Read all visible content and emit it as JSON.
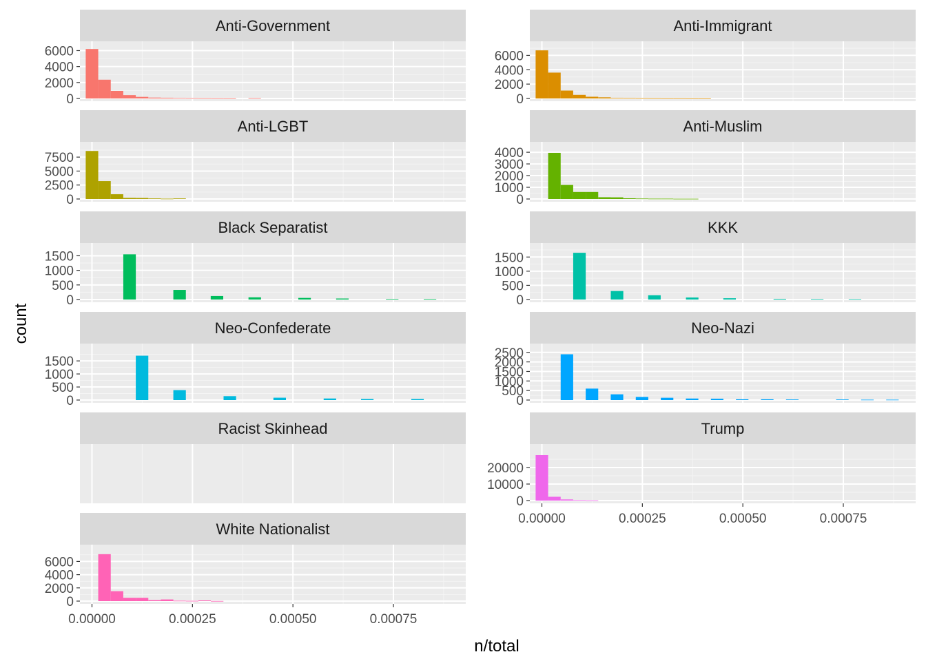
{
  "chart_data": {
    "type": "bar",
    "subtype": "faceted-histogram",
    "xlabel": "n/total",
    "ylabel": "count",
    "xlim": [
      -3e-05,
      0.00093
    ],
    "x_ticks": [
      0,
      0.00025,
      0.0005,
      0.00075
    ],
    "x_tick_labels": [
      "0.00000",
      "0.00025",
      "0.00050",
      "0.00075"
    ],
    "bin_width": 3.115e-05,
    "grid": true,
    "legend": "none",
    "facets": [
      {
        "name": "Anti-Government",
        "color": "#F8766D",
        "ylim": [
          0,
          6300
        ],
        "y_ticks": [
          0,
          2000,
          4000,
          6000
        ],
        "y_tick_labels": [
          "0",
          "2000",
          "4000",
          "6000"
        ],
        "bins": [
          {
            "x": 0.0,
            "count": 6200
          },
          {
            "x": 3.115e-05,
            "count": 2350
          },
          {
            "x": 6.23e-05,
            "count": 950
          },
          {
            "x": 9.345e-05,
            "count": 420
          },
          {
            "x": 0.0001246,
            "count": 200
          },
          {
            "x": 0.00015575,
            "count": 110
          },
          {
            "x": 0.0001869,
            "count": 90
          },
          {
            "x": 0.00021805,
            "count": 60
          },
          {
            "x": 0.0002492,
            "count": 40
          },
          {
            "x": 0.00028035,
            "count": 30
          },
          {
            "x": 0.0003115,
            "count": 20
          },
          {
            "x": 0.00034265,
            "count": 10
          },
          {
            "x": 0.0004049,
            "count": 40
          }
        ]
      },
      {
        "name": "Anti-Immigrant",
        "color": "#DB8E00",
        "ylim": [
          0,
          7000
        ],
        "y_ticks": [
          0,
          2000,
          4000,
          6000
        ],
        "y_tick_labels": [
          "0",
          "2000",
          "4000",
          "6000"
        ],
        "bins": [
          {
            "x": 0.0,
            "count": 6700
          },
          {
            "x": 3.115e-05,
            "count": 3600
          },
          {
            "x": 6.23e-05,
            "count": 1100
          },
          {
            "x": 9.345e-05,
            "count": 500
          },
          {
            "x": 0.0001246,
            "count": 240
          },
          {
            "x": 0.00015575,
            "count": 160
          },
          {
            "x": 0.0001869,
            "count": 80
          },
          {
            "x": 0.00021805,
            "count": 60
          },
          {
            "x": 0.0002492,
            "count": 40
          },
          {
            "x": 0.00028035,
            "count": 30
          },
          {
            "x": 0.0003115,
            "count": 20
          },
          {
            "x": 0.00034265,
            "count": 20
          },
          {
            "x": 0.0003738,
            "count": 10
          },
          {
            "x": 0.00040495,
            "count": 10
          }
        ]
      },
      {
        "name": "Anti-LGBT",
        "color": "#AEA200",
        "ylim": [
          0,
          9000
        ],
        "y_ticks": [
          0,
          2500,
          5000,
          7500
        ],
        "y_tick_labels": [
          "0",
          "2500",
          "5000",
          "7500"
        ],
        "bins": [
          {
            "x": 0.0,
            "count": 8600
          },
          {
            "x": 3.115e-05,
            "count": 3200
          },
          {
            "x": 6.23e-05,
            "count": 850
          },
          {
            "x": 9.345e-05,
            "count": 200
          },
          {
            "x": 0.0001246,
            "count": 180
          },
          {
            "x": 0.00015575,
            "count": 100
          },
          {
            "x": 0.0001869,
            "count": 60
          },
          {
            "x": 0.00021805,
            "count": 100
          }
        ]
      },
      {
        "name": "Anti-Muslim",
        "color": "#64B200",
        "ylim": [
          0,
          4300
        ],
        "y_ticks": [
          0,
          1000,
          2000,
          3000,
          4000
        ],
        "y_tick_labels": [
          "0",
          "1000",
          "2000",
          "3000",
          "4000"
        ],
        "bins": [
          {
            "x": 3.115e-05,
            "count": 3950
          },
          {
            "x": 6.23e-05,
            "count": 1200
          },
          {
            "x": 9.345e-05,
            "count": 600
          },
          {
            "x": 0.0001246,
            "count": 600
          },
          {
            "x": 0.00015575,
            "count": 150
          },
          {
            "x": 0.0001869,
            "count": 140
          },
          {
            "x": 0.00021805,
            "count": 60
          },
          {
            "x": 0.0002492,
            "count": 40
          },
          {
            "x": 0.00028035,
            "count": 30
          },
          {
            "x": 0.0003115,
            "count": 30
          },
          {
            "x": 0.00034265,
            "count": 20
          },
          {
            "x": 0.0003738,
            "count": 20
          }
        ]
      },
      {
        "name": "Black Separatist",
        "color": "#00BD5C",
        "ylim": [
          0,
          1700
        ],
        "y_ticks": [
          0,
          500,
          1000,
          1500
        ],
        "y_tick_labels": [
          "0",
          "500",
          "1000",
          "1500"
        ],
        "bins": [
          {
            "x": 9.35e-05,
            "count": 1550
          },
          {
            "x": 0.000218,
            "count": 330
          },
          {
            "x": 0.000311,
            "count": 120
          },
          {
            "x": 0.000405,
            "count": 75
          },
          {
            "x": 0.000529,
            "count": 55
          },
          {
            "x": 0.000623,
            "count": 35
          },
          {
            "x": 0.000747,
            "count": 20
          },
          {
            "x": 0.000841,
            "count": 20
          }
        ]
      },
      {
        "name": "KKK",
        "color": "#00C1A7",
        "ylim": [
          0,
          1750
        ],
        "y_ticks": [
          0,
          500,
          1000,
          1500
        ],
        "y_tick_labels": [
          "0",
          "500",
          "1000",
          "1500"
        ],
        "bins": [
          {
            "x": 9.35e-05,
            "count": 1650
          },
          {
            "x": 0.000187,
            "count": 300
          },
          {
            "x": 0.00028,
            "count": 150
          },
          {
            "x": 0.000374,
            "count": 70
          },
          {
            "x": 0.000467,
            "count": 45
          },
          {
            "x": 0.000592,
            "count": 25
          },
          {
            "x": 0.000685,
            "count": 20
          },
          {
            "x": 0.000779,
            "count": 15
          }
        ]
      },
      {
        "name": "Neo-Confederate",
        "color": "#00BADE",
        "ylim": [
          0,
          1900
        ],
        "y_ticks": [
          0,
          500,
          1000,
          1500
        ],
        "y_tick_labels": [
          "0",
          "500",
          "1000",
          "1500"
        ],
        "bins": [
          {
            "x": 0.0001246,
            "count": 1700
          },
          {
            "x": 0.000218,
            "count": 380
          },
          {
            "x": 0.000343,
            "count": 150
          },
          {
            "x": 0.000467,
            "count": 90
          },
          {
            "x": 0.000592,
            "count": 60
          },
          {
            "x": 0.000685,
            "count": 40
          },
          {
            "x": 0.00081,
            "count": 40
          }
        ]
      },
      {
        "name": "Neo-Nazi",
        "color": "#00A6FF",
        "ylim": [
          0,
          2600
        ],
        "y_ticks": [
          0,
          500,
          1000,
          1500,
          2000,
          2500
        ],
        "y_tick_labels": [
          "0",
          "500",
          "1000",
          "1500",
          "2000",
          "2500"
        ],
        "bins": [
          {
            "x": 6.23e-05,
            "count": 2400
          },
          {
            "x": 0.0001246,
            "count": 600
          },
          {
            "x": 0.0001869,
            "count": 300
          },
          {
            "x": 0.0002492,
            "count": 160
          },
          {
            "x": 0.0003115,
            "count": 120
          },
          {
            "x": 0.0003738,
            "count": 80
          },
          {
            "x": 0.0004361,
            "count": 70
          },
          {
            "x": 0.0004984,
            "count": 40
          },
          {
            "x": 0.0005607,
            "count": 40
          },
          {
            "x": 0.000623,
            "count": 30
          },
          {
            "x": 0.0007476,
            "count": 30
          },
          {
            "x": 0.0008099,
            "count": 20
          },
          {
            "x": 0.0008722,
            "count": 20
          }
        ]
      },
      {
        "name": "Racist Skinhead",
        "color": "#B385FF",
        "ylim": [
          0,
          1
        ],
        "y_ticks": [],
        "y_tick_labels": [],
        "bins": []
      },
      {
        "name": "Trump",
        "color": "#EF67EB",
        "ylim": [
          0,
          30000
        ],
        "y_ticks": [
          0,
          10000,
          20000
        ],
        "y_tick_labels": [
          "0",
          "10000",
          "20000"
        ],
        "bins": [
          {
            "x": 0.0,
            "count": 27500
          },
          {
            "x": 3.115e-05,
            "count": 2300
          },
          {
            "x": 6.23e-05,
            "count": 700
          },
          {
            "x": 9.345e-05,
            "count": 300
          },
          {
            "x": 0.0001246,
            "count": 150
          }
        ]
      },
      {
        "name": "White Nationalist",
        "color": "#FF63B6",
        "ylim": [
          0,
          7500
        ],
        "y_ticks": [
          0,
          2000,
          4000,
          6000
        ],
        "y_tick_labels": [
          "0",
          "2000",
          "4000",
          "6000"
        ],
        "bins": [
          {
            "x": 3.115e-05,
            "count": 7100
          },
          {
            "x": 6.23e-05,
            "count": 1500
          },
          {
            "x": 9.345e-05,
            "count": 500
          },
          {
            "x": 0.0001246,
            "count": 500
          },
          {
            "x": 0.00015575,
            "count": 150
          },
          {
            "x": 0.0001869,
            "count": 250
          },
          {
            "x": 0.00021805,
            "count": 60
          },
          {
            "x": 0.0002492,
            "count": 40
          },
          {
            "x": 0.00028035,
            "count": 100
          },
          {
            "x": 0.0003115,
            "count": 20
          }
        ]
      }
    ]
  }
}
